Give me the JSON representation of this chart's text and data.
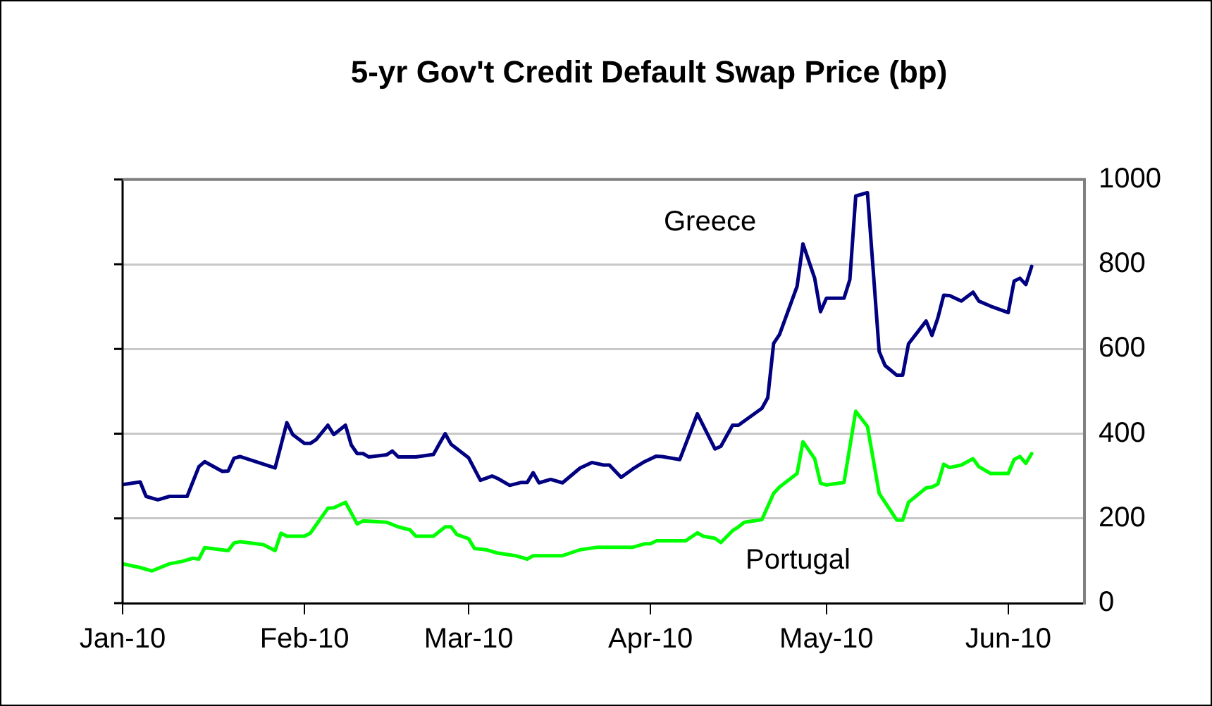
{
  "chart_data": {
    "type": "line",
    "title": "5-yr Gov't Credit Default Swap Price (bp)",
    "xlim": [
      "2010-01-01",
      "2010-06-14"
    ],
    "xticks": [
      {
        "value": "2010-01-01",
        "label": "Jan-10"
      },
      {
        "value": "2010-02-01",
        "label": "Feb-10"
      },
      {
        "value": "2010-03-01",
        "label": "Mar-10"
      },
      {
        "value": "2010-04-01",
        "label": "Apr-10"
      },
      {
        "value": "2010-05-01",
        "label": "May-10"
      },
      {
        "value": "2010-06-01",
        "label": "Jun-10"
      }
    ],
    "ylim": [
      0,
      1000
    ],
    "yticks": [
      0,
      200,
      400,
      600,
      800,
      1000
    ],
    "grid": "y",
    "legend": false,
    "marker": "none",
    "line_style": "solid",
    "series": [
      {
        "name": "Greece",
        "color": "#000080",
        "x": [
          "2010-01-01",
          "2010-01-04",
          "2010-01-05",
          "2010-01-07",
          "2010-01-09",
          "2010-01-12",
          "2010-01-14",
          "2010-01-15",
          "2010-01-18",
          "2010-01-19",
          "2010-01-20",
          "2010-01-21",
          "2010-01-27",
          "2010-01-29",
          "2010-01-30",
          "2010-02-01",
          "2010-02-02",
          "2010-02-03",
          "2010-02-05",
          "2010-02-06",
          "2010-02-08",
          "2010-02-09",
          "2010-02-10",
          "2010-02-11",
          "2010-02-12",
          "2010-02-15",
          "2010-02-16",
          "2010-02-17",
          "2010-02-20",
          "2010-02-23",
          "2010-02-24",
          "2010-02-25",
          "2010-02-26",
          "2010-03-01",
          "2010-03-03",
          "2010-03-05",
          "2010-03-06",
          "2010-03-08",
          "2010-03-10",
          "2010-03-11",
          "2010-03-12",
          "2010-03-13",
          "2010-03-15",
          "2010-03-17",
          "2010-03-20",
          "2010-03-22",
          "2010-03-24",
          "2010-03-25",
          "2010-03-27",
          "2010-03-29",
          "2010-03-31",
          "2010-04-02",
          "2010-04-03",
          "2010-04-06",
          "2010-04-09",
          "2010-04-12",
          "2010-04-13",
          "2010-04-15",
          "2010-04-16",
          "2010-04-20",
          "2010-04-21",
          "2010-04-22",
          "2010-04-23",
          "2010-04-26",
          "2010-04-27",
          "2010-04-29",
          "2010-04-30",
          "2010-05-01",
          "2010-05-04",
          "2010-05-05",
          "2010-05-06",
          "2010-05-08",
          "2010-05-10",
          "2010-05-11",
          "2010-05-13",
          "2010-05-14",
          "2010-05-15",
          "2010-05-18",
          "2010-05-19",
          "2010-05-20",
          "2010-05-21",
          "2010-05-22",
          "2010-05-24",
          "2010-05-26",
          "2010-05-27",
          "2010-05-29",
          "2010-06-01",
          "2010-06-02",
          "2010-06-03",
          "2010-06-04",
          "2010-06-05"
        ],
        "values": [
          280,
          286,
          252,
          244,
          252,
          252,
          322,
          334,
          311,
          312,
          342,
          346,
          319,
          426,
          398,
          377,
          377,
          386,
          420,
          398,
          420,
          373,
          353,
          353,
          345,
          350,
          359,
          345,
          345,
          351,
          376,
          400,
          375,
          343,
          290,
          300,
          294,
          278,
          285,
          285,
          308,
          284,
          292,
          284,
          319,
          332,
          326,
          326,
          297,
          317,
          334,
          347,
          346,
          339,
          447,
          364,
          370,
          420,
          420,
          460,
          485,
          613,
          634,
          748,
          848,
          767,
          688,
          720,
          720,
          764,
          961,
          969,
          594,
          561,
          538,
          538,
          612,
          666,
          632,
          673,
          727,
          726,
          713,
          734,
          713,
          701,
          686,
          760,
          767,
          752,
          795
        ]
      },
      {
        "name": "Portugal",
        "color": "#00ff00",
        "x": [
          "2010-01-01",
          "2010-01-04",
          "2010-01-06",
          "2010-01-09",
          "2010-01-11",
          "2010-01-13",
          "2010-01-14",
          "2010-01-15",
          "2010-01-19",
          "2010-01-20",
          "2010-01-21",
          "2010-01-25",
          "2010-01-27",
          "2010-01-28",
          "2010-01-29",
          "2010-02-01",
          "2010-02-02",
          "2010-02-05",
          "2010-02-06",
          "2010-02-08",
          "2010-02-10",
          "2010-02-11",
          "2010-02-15",
          "2010-02-17",
          "2010-02-19",
          "2010-02-20",
          "2010-02-23",
          "2010-02-25",
          "2010-02-26",
          "2010-02-27",
          "2010-03-01",
          "2010-03-02",
          "2010-03-04",
          "2010-03-06",
          "2010-03-09",
          "2010-03-11",
          "2010-03-12",
          "2010-03-17",
          "2010-03-20",
          "2010-03-23",
          "2010-03-29",
          "2010-03-31",
          "2010-04-01",
          "2010-04-02",
          "2010-04-07",
          "2010-04-09",
          "2010-04-10",
          "2010-04-12",
          "2010-04-13",
          "2010-04-15",
          "2010-04-16",
          "2010-04-17",
          "2010-04-20",
          "2010-04-22",
          "2010-04-23",
          "2010-04-26",
          "2010-04-27",
          "2010-04-29",
          "2010-04-30",
          "2010-05-01",
          "2010-05-04",
          "2010-05-06",
          "2010-05-08",
          "2010-05-10",
          "2010-05-11",
          "2010-05-13",
          "2010-05-14",
          "2010-05-15",
          "2010-05-18",
          "2010-05-19",
          "2010-05-20",
          "2010-05-21",
          "2010-05-22",
          "2010-05-24",
          "2010-05-26",
          "2010-05-27",
          "2010-05-29",
          "2010-06-01",
          "2010-06-02",
          "2010-06-03",
          "2010-06-04",
          "2010-06-05"
        ],
        "values": [
          93,
          84,
          76,
          93,
          98,
          106,
          104,
          131,
          124,
          142,
          145,
          138,
          124,
          165,
          158,
          158,
          165,
          224,
          225,
          238,
          187,
          194,
          191,
          180,
          173,
          158,
          158,
          180,
          180,
          162,
          152,
          129,
          126,
          118,
          112,
          104,
          112,
          112,
          126,
          132,
          132,
          140,
          140,
          147,
          147,
          166,
          158,
          153,
          143,
          171,
          180,
          191,
          197,
          259,
          274,
          306,
          381,
          341,
          283,
          279,
          285,
          453,
          417,
          259,
          238,
          196,
          196,
          238,
          272,
          274,
          281,
          328,
          320,
          326,
          341,
          322,
          306,
          306,
          339,
          346,
          330,
          353
        ]
      }
    ]
  }
}
